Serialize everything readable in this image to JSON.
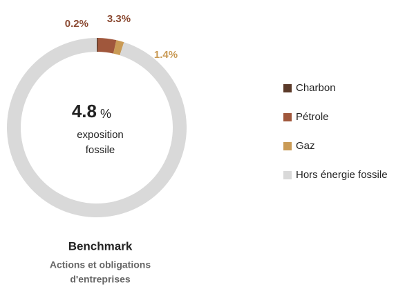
{
  "chart_data": {
    "type": "donut",
    "categories": [
      "Charbon",
      "Pétrole",
      "Gaz",
      "Hors énergie fossile"
    ],
    "values": [
      0.2,
      3.3,
      1.4,
      95.1
    ],
    "value_labels": [
      "0.2%",
      "3.3%",
      "1.4%",
      null
    ],
    "colors": [
      "#5b3a29",
      "#a0573c",
      "#c99a55",
      "#d9d9d9"
    ],
    "label_colors": [
      "#8b4a32",
      "#8b4a32",
      "#c99a55",
      null
    ],
    "center": {
      "value": "4.8",
      "unit": "%",
      "label_lines": [
        "exposition",
        "fossile"
      ]
    },
    "caption": {
      "title": "Benchmark",
      "subtitle_lines": [
        "Actions et obligations",
        "d'entreprises"
      ]
    },
    "legend": "right"
  }
}
